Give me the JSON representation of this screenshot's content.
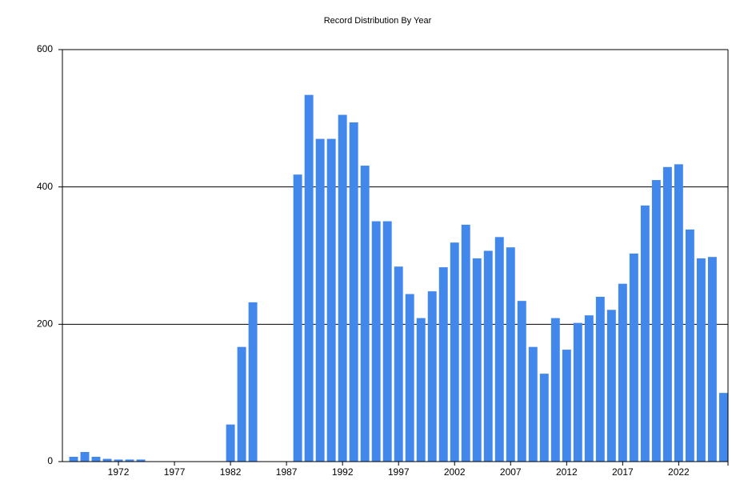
{
  "chart_data": {
    "type": "bar",
    "title": "Record Distribution By Year",
    "x": [
      1968,
      1969,
      1970,
      1971,
      1972,
      1973,
      1974,
      1975,
      1976,
      1977,
      1978,
      1979,
      1980,
      1981,
      1982,
      1983,
      1984,
      1985,
      1986,
      1987,
      1988,
      1989,
      1990,
      1991,
      1992,
      1993,
      1994,
      1995,
      1996,
      1997,
      1998,
      1999,
      2000,
      2001,
      2002,
      2003,
      2004,
      2005,
      2006,
      2007,
      2008,
      2009,
      2010,
      2011,
      2012,
      2013,
      2014,
      2015,
      2016,
      2017,
      2018,
      2019,
      2020,
      2021,
      2022,
      2023,
      2024,
      2025,
      2026
    ],
    "values": [
      7,
      14,
      7,
      4,
      3,
      3,
      3,
      0,
      0,
      0,
      0,
      0,
      0,
      0,
      54,
      167,
      232,
      0,
      0,
      0,
      418,
      534,
      470,
      470,
      505,
      494,
      431,
      350,
      350,
      284,
      244,
      209,
      248,
      283,
      319,
      345,
      296,
      307,
      327,
      312,
      234,
      167,
      128,
      209,
      163,
      202,
      213,
      240,
      221,
      259,
      303,
      373,
      410,
      429,
      433,
      338,
      296,
      298,
      100
    ],
    "color": "#4287ec",
    "xlim": [
      1967,
      2026.4
    ],
    "xticks": [
      1972,
      1977,
      1982,
      1987,
      1992,
      1997,
      2002,
      2007,
      2012,
      2017,
      2022
    ],
    "ylim": [
      0,
      600
    ],
    "yticks": [
      0,
      200,
      400,
      600
    ],
    "grid": true
  }
}
